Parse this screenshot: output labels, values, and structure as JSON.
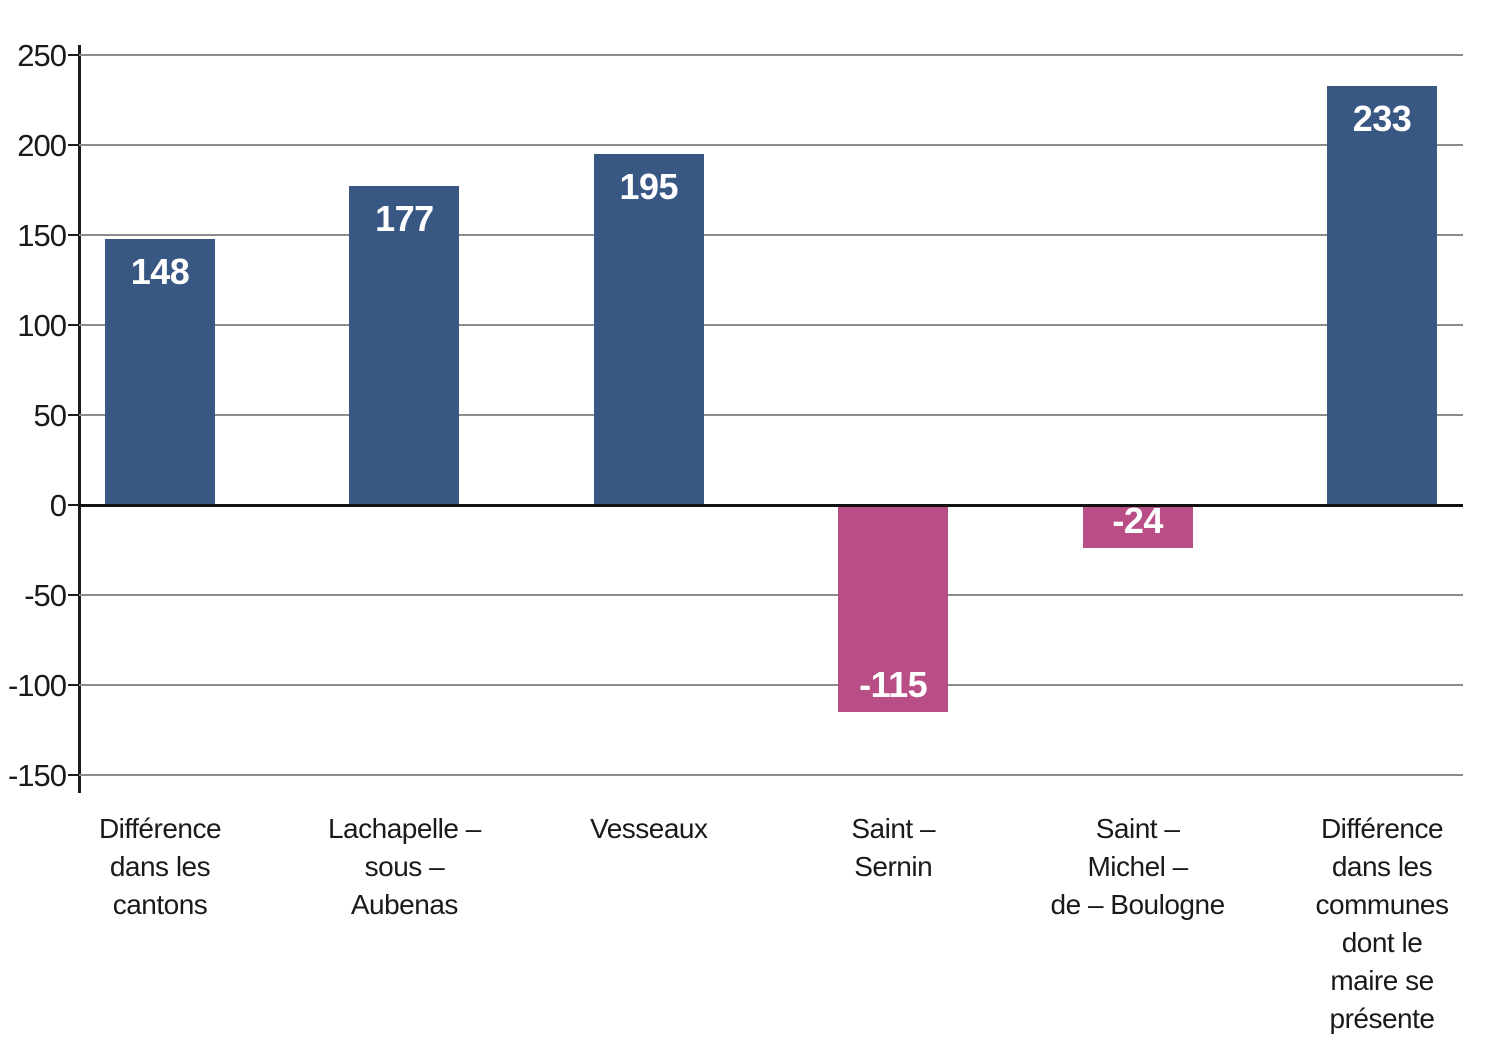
{
  "chart_data": {
    "type": "bar",
    "title": "",
    "xlabel": "",
    "ylabel": "",
    "categories": [
      "Différence dans les cantons",
      "Lachapelle – sous – Aubenas",
      "Vesseaux",
      "Saint – Sernin",
      "Saint – Michel – de – Boulogne",
      "Différence dans les communes dont le maire se présente"
    ],
    "category_lines": [
      [
        "Différence",
        "dans les",
        "cantons"
      ],
      [
        "Lachapelle –",
        "sous –",
        "Aubenas"
      ],
      [
        "Vesseaux"
      ],
      [
        "Saint –",
        "Sernin"
      ],
      [
        "Saint –",
        "Michel –",
        "de – Boulogne"
      ],
      [
        "Différence",
        "dans les",
        "communes",
        "dont le",
        "maire se",
        "présente"
      ]
    ],
    "values": [
      148,
      177,
      195,
      -115,
      -24,
      233
    ],
    "data_labels": [
      "148",
      "177",
      "195",
      "-115",
      "-24",
      "233"
    ],
    "ylim": [
      -150,
      250
    ],
    "yticks": [
      250,
      200,
      150,
      100,
      50,
      0,
      -50,
      -100,
      -150
    ],
    "ytick_labels": [
      "250",
      "200",
      "150",
      "100",
      "50",
      "0",
      "-50",
      "-100",
      "-150"
    ],
    "grid": true,
    "legend": false,
    "colors": {
      "bar_positive": "#395783",
      "bar_negative": "#B94E86",
      "gridline": "#8C8C8C",
      "zero_line": "#111111",
      "axis": "#1A1A1A",
      "tick_text": "#1A1A1A",
      "category_text": "#1A1A1A",
      "value_text": "#FFFFFF",
      "background": "#FFFFFF"
    }
  }
}
